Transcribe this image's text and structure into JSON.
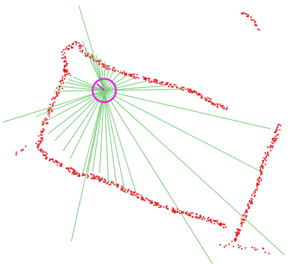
{
  "colors": {
    "background": "#ffffff",
    "laser_points": "#e8151b",
    "scan_rays": "#7ed07e",
    "robot": "#e61ee6"
  },
  "robot_icon": "robot-circle-icon"
}
